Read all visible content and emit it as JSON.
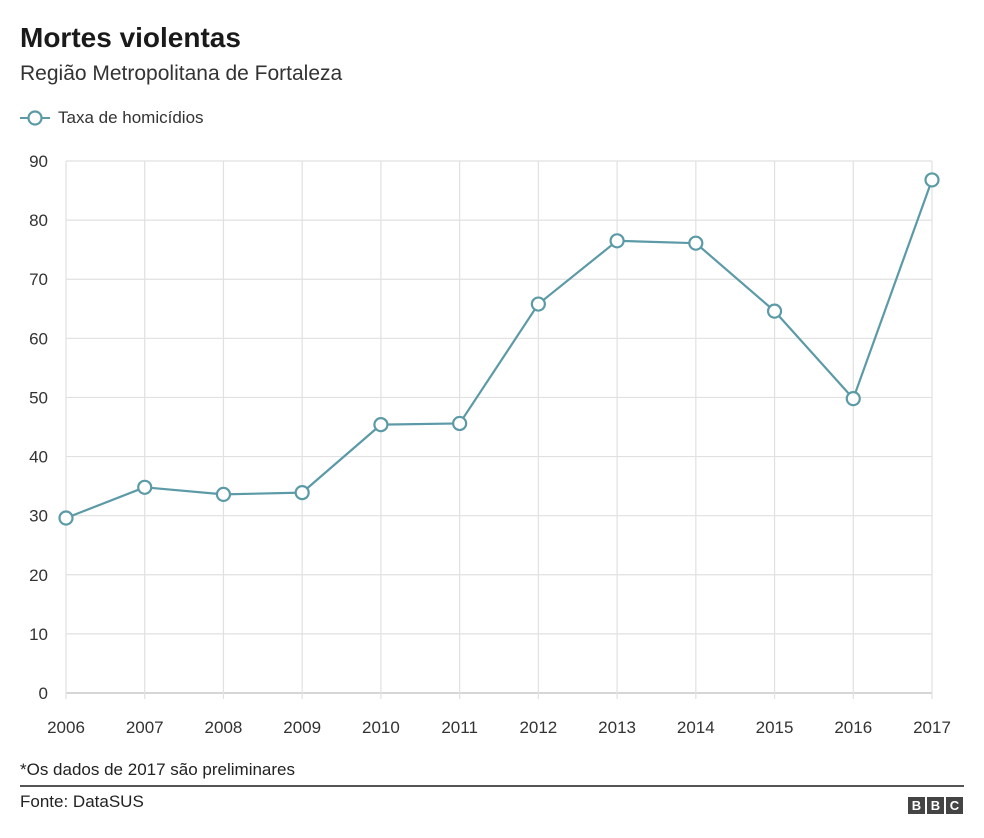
{
  "chart_data": {
    "type": "line",
    "title": "Mortes violentas",
    "subtitle": "Região Metropolitana de Fortaleza",
    "x": [
      "2006",
      "2007",
      "2008",
      "2009",
      "2010",
      "2011",
      "2012",
      "2013",
      "2014",
      "2015",
      "2016",
      "2017"
    ],
    "series": [
      {
        "name": "Taxa de homicídios",
        "values": [
          29.6,
          34.8,
          33.6,
          33.9,
          45.4,
          45.6,
          65.8,
          76.5,
          76.1,
          64.6,
          49.8,
          86.8
        ]
      }
    ],
    "ylim": [
      0,
      90
    ],
    "yticks": [
      0,
      10,
      20,
      30,
      40,
      50,
      60,
      70,
      80,
      90
    ],
    "grid": true,
    "legend_position": "top-left",
    "line_color": "#5b9aa6"
  },
  "footnote": "*Os dados de 2017 são preliminares",
  "source": "Fonte: DataSUS",
  "logo": {
    "letters": [
      "B",
      "B",
      "C"
    ]
  }
}
